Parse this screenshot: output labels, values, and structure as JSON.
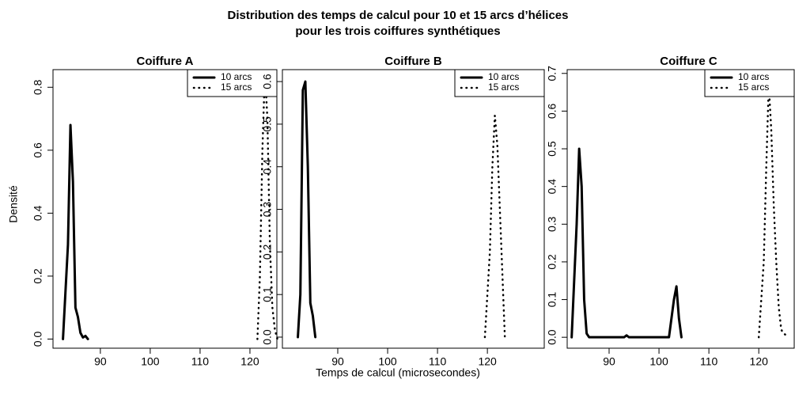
{
  "title": [
    "Distribution des temps de calcul pour 10 et 15 arcs d’hélices",
    "pour les trois coiffures synthétiques"
  ],
  "xlabel": "Temps de calcul (microsecondes)",
  "ylabel": "Densité",
  "chart_data": [
    {
      "type": "line",
      "title": "Coiffure A",
      "legend": "upper right",
      "xlim": [
        80.5,
        125.4
      ],
      "xticks": [
        90,
        100,
        110,
        120
      ],
      "ylim": [
        -0.029,
        0.856
      ],
      "yticks": [
        {
          "value": 0,
          "label": "0.0"
        },
        0.2,
        0.4,
        0.6,
        0.8
      ],
      "series": [
        {
          "name": "10 arcs",
          "color": "#000000",
          "style": "solid",
          "x": [
            82.5,
            83.5,
            84,
            84.5,
            85,
            85.5,
            86,
            86.5,
            87,
            87.5
          ],
          "values": [
            0,
            0.3,
            0.68,
            0.5,
            0.1,
            0.07,
            0.02,
            0.005,
            0.01,
            0
          ]
        },
        {
          "name": "15 arcs",
          "color": "#000000",
          "style": "dotted",
          "x": [
            121.5,
            122,
            122.5,
            123,
            123.5,
            124,
            124.5,
            125,
            125.5
          ],
          "values": [
            0,
            0.2,
            0.6,
            0.85,
            0.7,
            0.3,
            0.1,
            0.03,
            0
          ]
        }
      ]
    },
    {
      "type": "line",
      "title": "Coiffure B",
      "legend": "upper right",
      "xlim": [
        78.9,
        131.4
      ],
      "xticks": [
        90,
        100,
        110,
        120
      ],
      "ylim": [
        -0.026,
        0.628
      ],
      "yticks": [
        {
          "value": 0,
          "label": "0.0"
        },
        0.1,
        0.2,
        0.3,
        0.4,
        0.5,
        0.6
      ],
      "series": [
        {
          "name": "10 arcs",
          "color": "#000000",
          "style": "solid",
          "x": [
            82,
            82.5,
            83,
            83.5,
            84,
            84.5,
            85,
            85.5
          ],
          "values": [
            0,
            0.1,
            0.58,
            0.6,
            0.4,
            0.08,
            0.05,
            0
          ]
        },
        {
          "name": "15 arcs",
          "color": "#000000",
          "style": "dotted",
          "x": [
            119.5,
            120.5,
            121,
            121.5,
            122,
            122.5,
            123,
            123.5
          ],
          "values": [
            0,
            0.2,
            0.4,
            0.52,
            0.45,
            0.3,
            0.15,
            0
          ]
        }
      ]
    },
    {
      "type": "line",
      "title": "Coiffure C",
      "legend": "upper right",
      "xlim": [
        81.6,
        127.1
      ],
      "xticks": [
        90,
        100,
        110,
        120
      ],
      "ylim": [
        -0.029,
        0.71
      ],
      "yticks": [
        {
          "value": 0,
          "label": "0.0"
        },
        0.1,
        0.2,
        0.3,
        0.4,
        0.5,
        0.6,
        0.7
      ],
      "series": [
        {
          "name": "10 arcs",
          "color": "#000000",
          "style": "solid",
          "x": [
            82.5,
            83.5,
            84,
            84.5,
            85,
            85.5,
            86,
            93,
            93.5,
            94,
            102,
            102.5,
            103,
            103.5,
            104,
            104.5
          ],
          "values": [
            0,
            0.3,
            0.5,
            0.4,
            0.1,
            0.01,
            0,
            0,
            0.005,
            0,
            0,
            0.05,
            0.1,
            0.135,
            0.05,
            0
          ]
        },
        {
          "name": "15 arcs",
          "color": "#000000",
          "style": "dotted",
          "x": [
            120,
            121,
            121.5,
            122,
            122.5,
            123,
            123.5,
            124,
            124.5,
            125,
            126
          ],
          "values": [
            0,
            0.2,
            0.45,
            0.67,
            0.55,
            0.35,
            0.2,
            0.08,
            0.02,
            0.01,
            0
          ]
        }
      ]
    }
  ]
}
